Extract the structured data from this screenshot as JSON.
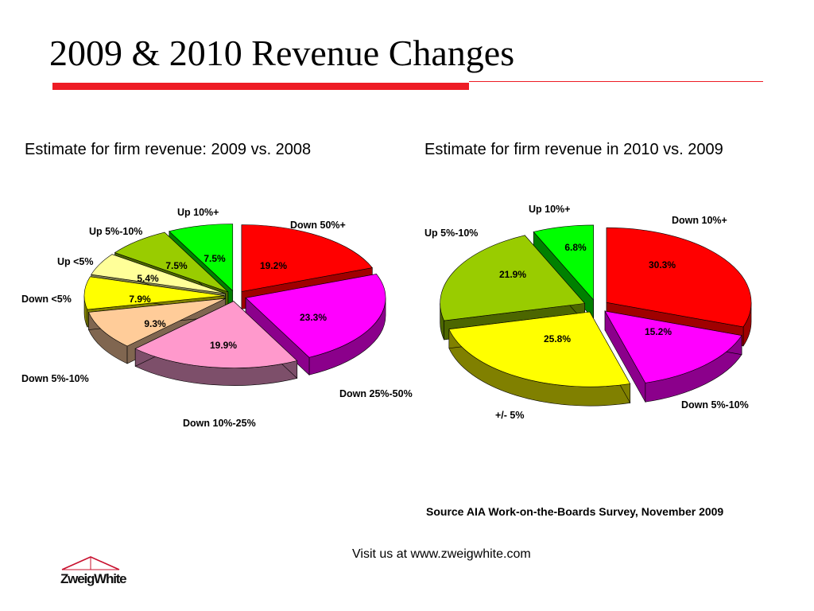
{
  "slide": {
    "title": "2009 & 2010 Revenue Changes",
    "accent_color": "#ee1c25"
  },
  "source_note": "Source AIA Work-on-the-Boards Survey, November 2009",
  "visit_note": "Visit us at www.zweigwhite.com",
  "logo": {
    "text": "ZweigWhite",
    "icon": "house-roof-logo-icon"
  },
  "chart_data": [
    {
      "type": "pie",
      "title": "Estimate for firm revenue: 2009 vs. 2008",
      "slices": [
        {
          "label": "Down 50%+",
          "value": 19.2,
          "value_label": "19.2%",
          "color": "#ff0000",
          "side": "#a00000",
          "exploded": true
        },
        {
          "label": "Down 25%-50%",
          "value": 23.3,
          "value_label": "23.3%",
          "color": "#ff00ff",
          "side": "#8b008b",
          "exploded": true
        },
        {
          "label": "Down 10%-25%",
          "value": 19.9,
          "value_label": "19.9%",
          "color": "#ff99cc",
          "side": "#7d4f6a",
          "exploded": true
        },
        {
          "label": "Down 5%-10%",
          "value": 9.3,
          "value_label": "9.3%",
          "color": "#ffcc99",
          "side": "#806650",
          "exploded": true
        },
        {
          "label": "Down <5%",
          "value": 7.9,
          "value_label": "7.9%",
          "color": "#ffff00",
          "side": "#808000",
          "exploded": true
        },
        {
          "label": "Up <5%",
          "value": 5.4,
          "value_label": "5.4%",
          "color": "#ffff99",
          "side": "#80804c",
          "exploded": true
        },
        {
          "label": "Up 5%-10%",
          "value": 7.5,
          "value_label": "7.5%",
          "color": "#99cc00",
          "side": "#4c6600",
          "exploded": true
        },
        {
          "label": "Up 10%+",
          "value": 7.5,
          "value_label": "7.5%",
          "color": "#00ff00",
          "side": "#008000",
          "exploded": true
        }
      ]
    },
    {
      "type": "pie",
      "title": "Estimate for firm revenue in 2010 vs. 2009",
      "slices": [
        {
          "label": "Down 10%+",
          "value": 30.3,
          "value_label": "30.3%",
          "color": "#ff0000",
          "side": "#a00000",
          "exploded": true
        },
        {
          "label": "Down 5%-10%",
          "value": 15.2,
          "value_label": "15.2%",
          "color": "#ff00ff",
          "side": "#8b008b",
          "exploded": true
        },
        {
          "label": "+/- 5%",
          "value": 25.8,
          "value_label": "25.8%",
          "color": "#ffff00",
          "side": "#808000",
          "exploded": true
        },
        {
          "label": "Up 5%-10%",
          "value": 21.9,
          "value_label": "21.9%",
          "color": "#99cc00",
          "side": "#4c6600",
          "exploded": true
        },
        {
          "label": "Up 10%+",
          "value": 6.8,
          "value_label": "6.8%",
          "color": "#00ff00",
          "side": "#008000",
          "exploded": true
        }
      ]
    }
  ]
}
